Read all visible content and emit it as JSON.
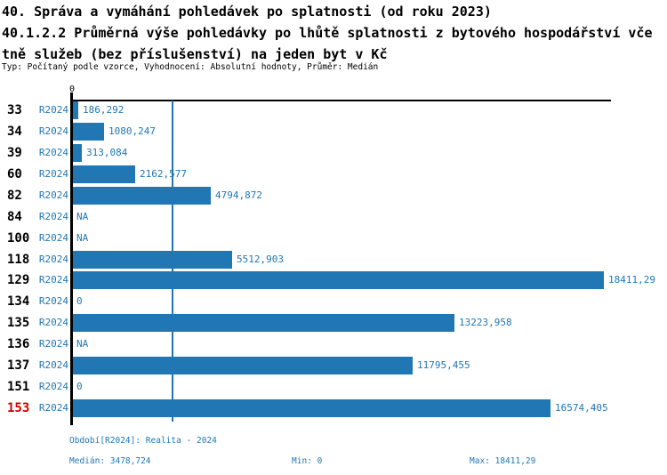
{
  "header": {
    "title_line1": "40. Správa a vymáhání pohledávek po splatnosti (od roku 2023)",
    "title_line2": "40.1.2.2 Průměrná výše pohledávky po lhůtě splatnosti z bytového hospodářství vče",
    "title_line3": "tně služeb (bez příslušenství) na jeden byt v Kč",
    "meta_line": "Typ: Počítaný podle vzorce, Vyhodnocení: Absolutní hodnoty, Průměr: Medián"
  },
  "chart_data": {
    "type": "bar",
    "orientation": "horizontal",
    "title": "40.1.2.2 Průměrná výše pohledávky po lhůtě splatnosti z bytového hospodářství včetně služeb (bez příslušenství) na jeden byt v Kč",
    "series_label": "R2024",
    "axis": {
      "zero_tick_label": "0",
      "x_min": 0,
      "x_max": 18411.29,
      "grid": false
    },
    "categories": [
      "33",
      "34",
      "39",
      "60",
      "82",
      "84",
      "100",
      "118",
      "129",
      "134",
      "135",
      "136",
      "137",
      "151",
      "153"
    ],
    "rows": [
      {
        "id": "33",
        "period": "R2024",
        "value": 186.292,
        "label": "186,292",
        "highlight": false
      },
      {
        "id": "34",
        "period": "R2024",
        "value": 1080.247,
        "label": "1080,247",
        "highlight": false
      },
      {
        "id": "39",
        "period": "R2024",
        "value": 313.084,
        "label": "313,084",
        "highlight": false
      },
      {
        "id": "60",
        "period": "R2024",
        "value": 2162.577,
        "label": "2162,577",
        "highlight": false
      },
      {
        "id": "82",
        "period": "R2024",
        "value": 4794.872,
        "label": "4794,872",
        "highlight": false
      },
      {
        "id": "84",
        "period": "R2024",
        "value": null,
        "label": "NA",
        "highlight": false
      },
      {
        "id": "100",
        "period": "R2024",
        "value": null,
        "label": "NA",
        "highlight": false
      },
      {
        "id": "118",
        "period": "R2024",
        "value": 5512.903,
        "label": "5512,903",
        "highlight": false
      },
      {
        "id": "129",
        "period": "R2024",
        "value": 18411.29,
        "label": "18411,29",
        "highlight": false
      },
      {
        "id": "134",
        "period": "R2024",
        "value": 0,
        "label": "0",
        "highlight": false
      },
      {
        "id": "135",
        "period": "R2024",
        "value": 13223.958,
        "label": "13223,958",
        "highlight": false
      },
      {
        "id": "136",
        "period": "R2024",
        "value": null,
        "label": "NA",
        "highlight": false
      },
      {
        "id": "137",
        "period": "R2024",
        "value": 11795.455,
        "label": "11795,455",
        "highlight": false
      },
      {
        "id": "151",
        "period": "R2024",
        "value": 0,
        "label": "0",
        "highlight": false
      },
      {
        "id": "153",
        "period": "R2024",
        "value": 16574.405,
        "label": "16574,405",
        "highlight": true
      }
    ],
    "median_value": 3478.724,
    "min_value": 0,
    "max_value": 18411.29,
    "colors": {
      "bar": "#2077b4",
      "axis": "#000000",
      "highlight_row": "#cc0000"
    }
  },
  "footer": {
    "period_line": "Období[R2024]: Realita - 2024",
    "median": "Medián: 3478,724",
    "min": "Min: 0",
    "max": "Max: 18411,29"
  }
}
